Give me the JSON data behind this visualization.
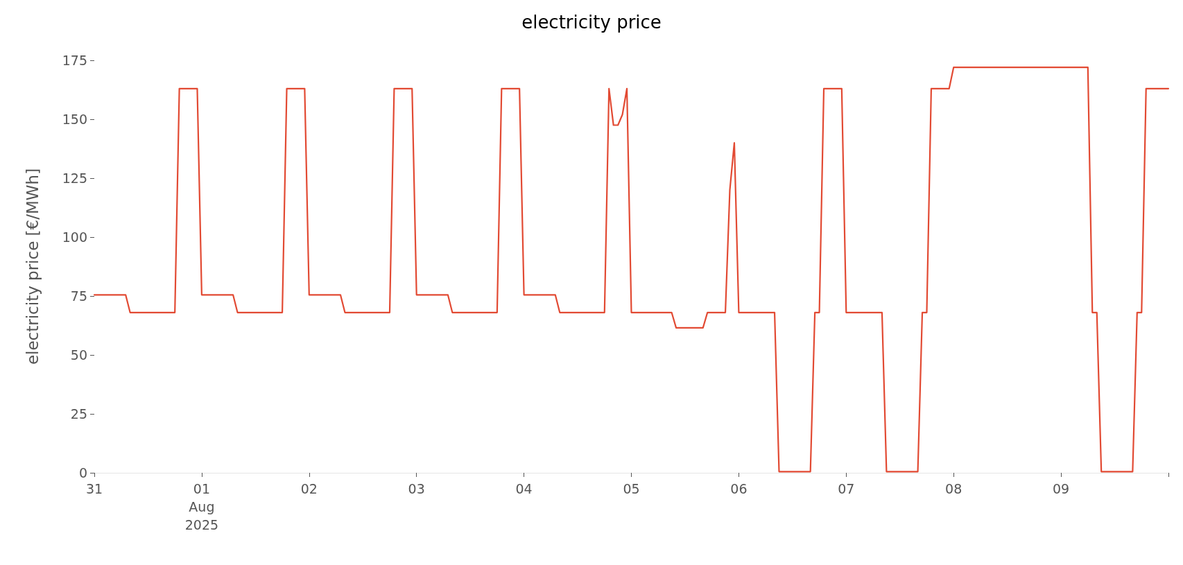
{
  "chart_data": {
    "type": "line",
    "title": "electricity price",
    "ylabel": "electricity price [€/MWh]",
    "x": [
      "2025-07-31T00:00",
      "2025-07-31T07:00",
      "2025-07-31T08:00",
      "2025-07-31T18:00",
      "2025-07-31T19:00",
      "2025-07-31T23:00",
      "2025-08-01T00:00",
      "2025-08-01T07:00",
      "2025-08-01T08:00",
      "2025-08-01T18:00",
      "2025-08-01T19:00",
      "2025-08-01T23:00",
      "2025-08-02T00:00",
      "2025-08-02T07:00",
      "2025-08-02T08:00",
      "2025-08-02T18:00",
      "2025-08-02T19:00",
      "2025-08-02T23:00",
      "2025-08-03T00:00",
      "2025-08-03T07:00",
      "2025-08-03T08:00",
      "2025-08-03T18:00",
      "2025-08-03T19:00",
      "2025-08-03T23:00",
      "2025-08-04T00:00",
      "2025-08-04T07:00",
      "2025-08-04T08:00",
      "2025-08-04T18:00",
      "2025-08-04T19:00",
      "2025-08-04T20:00",
      "2025-08-04T21:00",
      "2025-08-04T22:00",
      "2025-08-04T23:00",
      "2025-08-05T00:00",
      "2025-08-05T09:00",
      "2025-08-05T10:00",
      "2025-08-05T16:00",
      "2025-08-05T17:00",
      "2025-08-05T21:00",
      "2025-08-05T22:00",
      "2025-08-05T23:00",
      "2025-08-06T00:00",
      "2025-08-06T08:00",
      "2025-08-06T09:00",
      "2025-08-06T16:00",
      "2025-08-06T17:00",
      "2025-08-06T18:00",
      "2025-08-06T19:00",
      "2025-08-06T23:00",
      "2025-08-07T00:00",
      "2025-08-07T08:00",
      "2025-08-07T09:00",
      "2025-08-07T16:00",
      "2025-08-07T17:00",
      "2025-08-07T18:00",
      "2025-08-07T19:00",
      "2025-08-07T23:00",
      "2025-08-08T00:00",
      "2025-08-09T06:00",
      "2025-08-09T07:00",
      "2025-08-09T08:00",
      "2025-08-09T09:00",
      "2025-08-09T16:00",
      "2025-08-09T17:00",
      "2025-08-09T18:00",
      "2025-08-09T19:00",
      "2025-08-10T00:00"
    ],
    "series": [
      {
        "color": "#e24a33",
        "values": [
          75.5,
          75.5,
          68,
          68,
          163,
          163,
          75.5,
          75.5,
          68,
          68,
          163,
          163,
          75.5,
          75.5,
          68,
          68,
          163,
          163,
          75.5,
          75.5,
          68,
          68,
          163,
          163,
          75.5,
          75.5,
          68,
          68,
          163,
          147.5,
          147.5,
          152,
          163,
          68,
          68,
          61.5,
          61.5,
          68,
          68,
          120,
          140,
          68,
          68,
          0.5,
          0.5,
          68,
          68,
          163,
          163,
          68,
          68,
          0.5,
          0.5,
          68,
          68,
          163,
          163,
          172,
          172,
          68,
          68,
          0.5,
          0.5,
          68,
          68,
          163,
          163
        ]
      }
    ],
    "xticks": [
      {
        "value": "2025-07-31",
        "label": "31"
      },
      {
        "value": "2025-08-01",
        "label": "01\nAug\n2025"
      },
      {
        "value": "2025-08-02",
        "label": "02"
      },
      {
        "value": "2025-08-03",
        "label": "03"
      },
      {
        "value": "2025-08-04",
        "label": "04"
      },
      {
        "value": "2025-08-05",
        "label": "05"
      },
      {
        "value": "2025-08-06",
        "label": "06"
      },
      {
        "value": "2025-08-07",
        "label": "07"
      },
      {
        "value": "2025-08-08",
        "label": "08"
      },
      {
        "value": "2025-08-09",
        "label": "09"
      },
      {
        "value": "2025-08-10",
        "label": null
      }
    ],
    "xlim": [
      "2025-07-31",
      "2025-08-10"
    ],
    "ylim": [
      0,
      175
    ],
    "yticks": [
      0,
      25,
      50,
      75,
      100,
      125,
      150,
      175
    ],
    "grid": false,
    "marker": "none",
    "line_style": "solid"
  }
}
